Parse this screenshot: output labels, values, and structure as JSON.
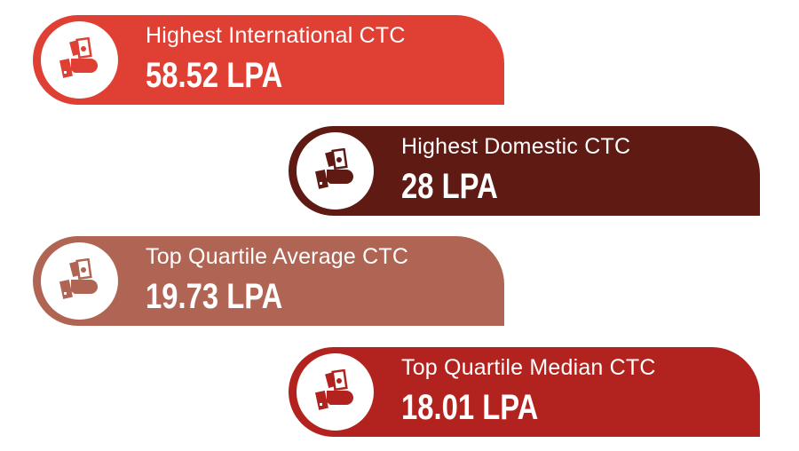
{
  "cards": [
    {
      "label": "Highest International CTC",
      "value": "58.52 LPA",
      "color": "#e03f33",
      "icon": "hand-holding-money-icon"
    },
    {
      "label": "Highest Domestic CTC",
      "value": "28 LPA",
      "color": "#5e1a13",
      "icon": "hand-holding-money-icon"
    },
    {
      "label": "Top Quartile Average CTC",
      "value": "19.73 LPA",
      "color": "#b06453",
      "icon": "hand-holding-money-icon"
    },
    {
      "label": "Top Quartile Median CTC",
      "value": "18.01 LPA",
      "color": "#b2231f",
      "icon": "hand-holding-money-icon"
    }
  ]
}
